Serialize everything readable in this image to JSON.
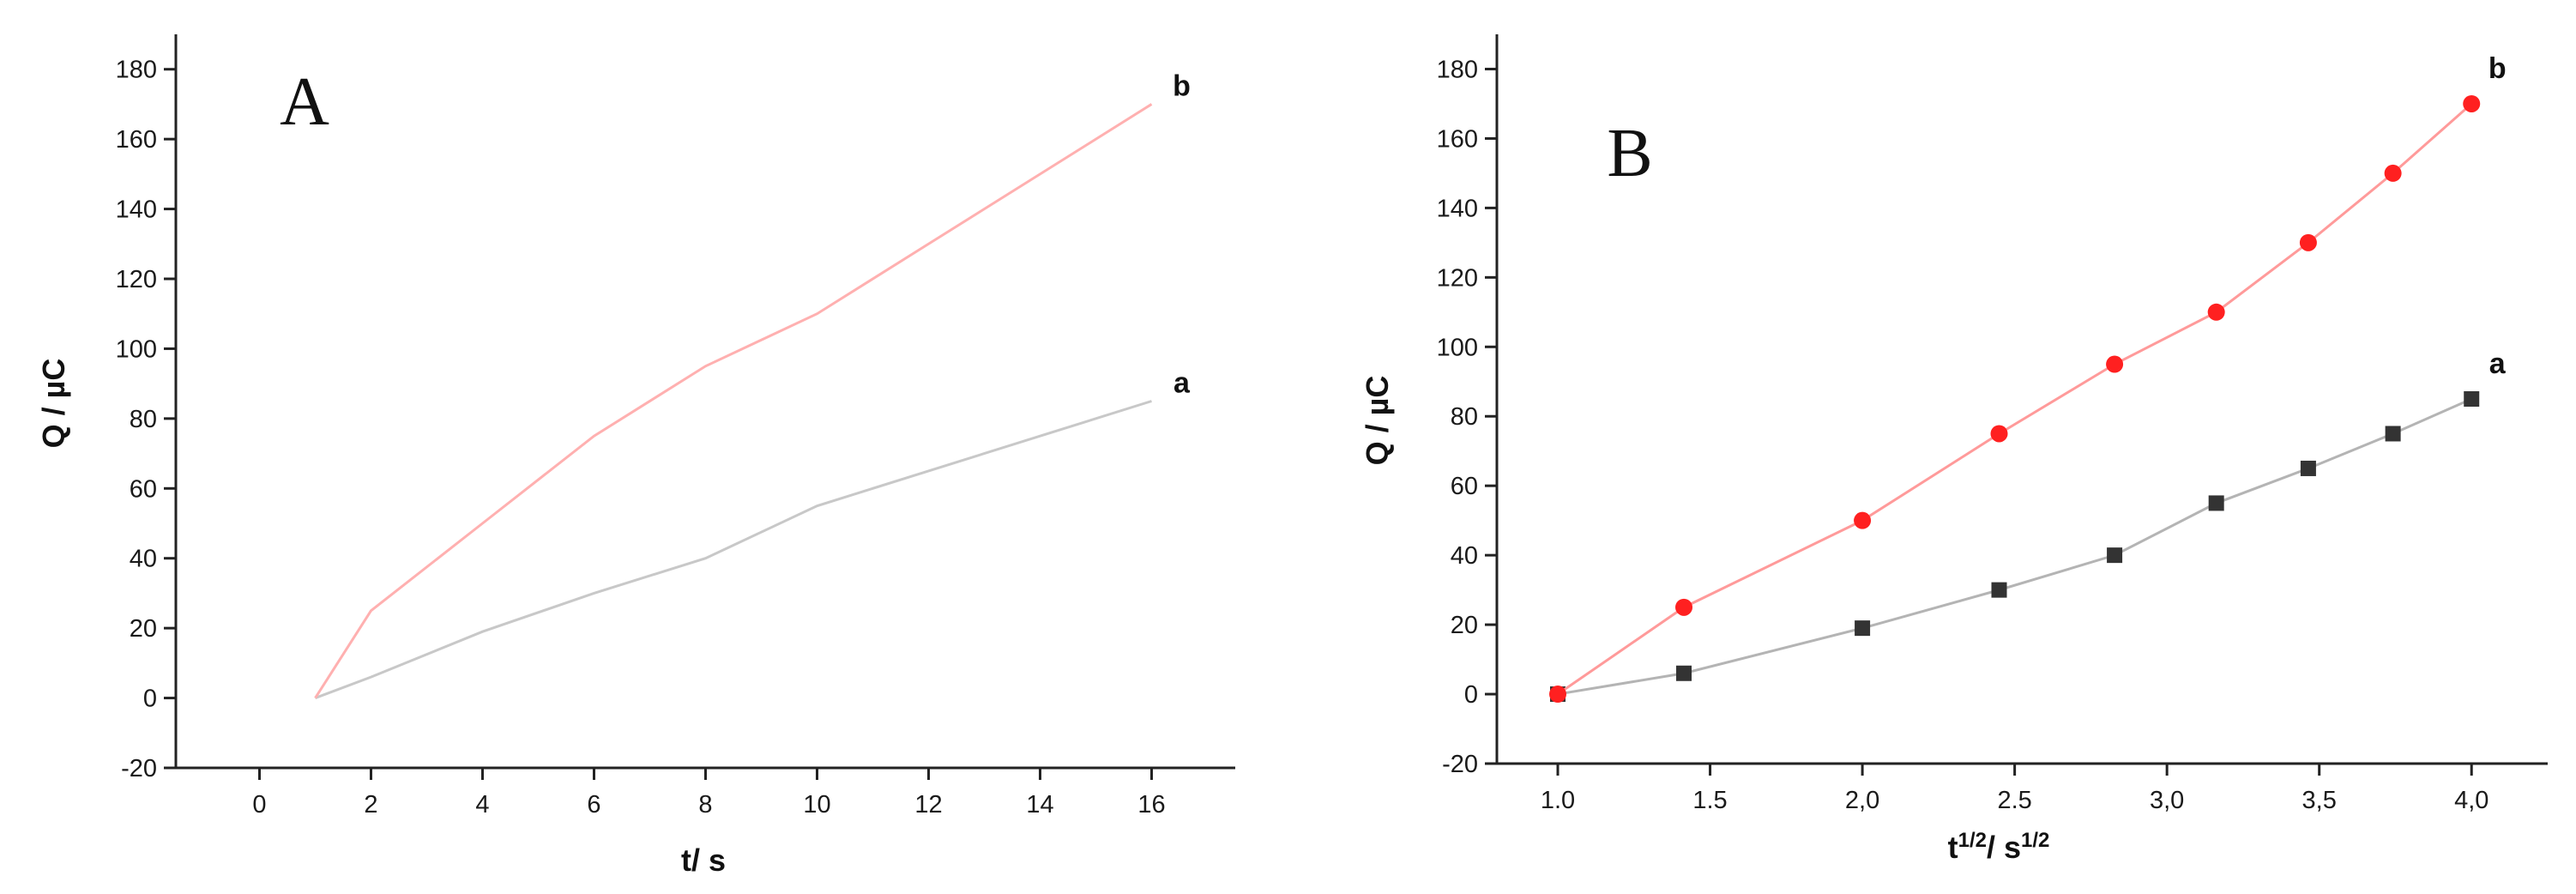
{
  "chart_data": [
    {
      "type": "line",
      "panel_label": "A",
      "xlabel": "t/ s",
      "ylabel": "Q / µC",
      "xlim": [
        -1.5,
        17.5
      ],
      "ylim": [
        -20,
        190
      ],
      "xticks": [
        0,
        2,
        4,
        6,
        8,
        10,
        12,
        14,
        16
      ],
      "xtick_labels": [
        "0",
        "2",
        "4",
        "6",
        "8",
        "10",
        "12",
        "14",
        "16"
      ],
      "yticks": [
        -20,
        0,
        20,
        40,
        60,
        80,
        100,
        120,
        140,
        160,
        180
      ],
      "ytick_labels": [
        "-20",
        "0",
        "20",
        "40",
        "60",
        "80",
        "100",
        "120",
        "140",
        "160",
        "180"
      ],
      "grid": false,
      "series": [
        {
          "name": "a",
          "color": "#c8c8c8",
          "marker": "none",
          "x": [
            1,
            2,
            4,
            6,
            8,
            10,
            12,
            14,
            16
          ],
          "y": [
            0,
            6,
            19,
            30,
            40,
            55,
            65,
            75,
            85
          ]
        },
        {
          "name": "b",
          "color": "#ffb0b0",
          "marker": "none",
          "x": [
            1,
            2,
            4,
            6,
            8,
            10,
            12,
            14,
            16
          ],
          "y": [
            0,
            25,
            50,
            75,
            95,
            110,
            130,
            150,
            170
          ]
        }
      ]
    },
    {
      "type": "line",
      "panel_label": "B",
      "xlabel": "t1/2/ s1/2",
      "xlabel_parts": [
        "t",
        "1/2",
        "/ s",
        "1/2"
      ],
      "ylabel": "Q / µC",
      "xlim": [
        0.8,
        4.25
      ],
      "ylim": [
        -20,
        190
      ],
      "xticks": [
        1.0,
        1.5,
        2.0,
        2.5,
        3.0,
        3.5,
        4.0
      ],
      "xtick_labels": [
        "1.0",
        "1.5",
        "2,0",
        "2.5",
        "3,0",
        "3,5",
        "4,0"
      ],
      "yticks": [
        -20,
        0,
        20,
        40,
        60,
        80,
        100,
        120,
        140,
        160,
        180
      ],
      "ytick_labels": [
        "-20",
        "0",
        "20",
        "40",
        "60",
        "80",
        "100",
        "120",
        "140",
        "160",
        "180"
      ],
      "grid": false,
      "series": [
        {
          "name": "a",
          "color": "#333333",
          "line_color": "#b4b4b4",
          "marker": "square",
          "x": [
            1.0,
            1.414,
            2.0,
            2.449,
            2.828,
            3.162,
            3.464,
            3.742,
            4.0
          ],
          "y": [
            0,
            6,
            19,
            30,
            40,
            55,
            65,
            75,
            85
          ]
        },
        {
          "name": "b",
          "color": "#ff2020",
          "line_color": "#ff9a9a",
          "marker": "circle",
          "x": [
            1.0,
            1.414,
            2.0,
            2.449,
            2.828,
            3.162,
            3.464,
            3.742,
            4.0
          ],
          "y": [
            0,
            25,
            50,
            75,
            95,
            110,
            130,
            150,
            170
          ]
        }
      ]
    }
  ]
}
